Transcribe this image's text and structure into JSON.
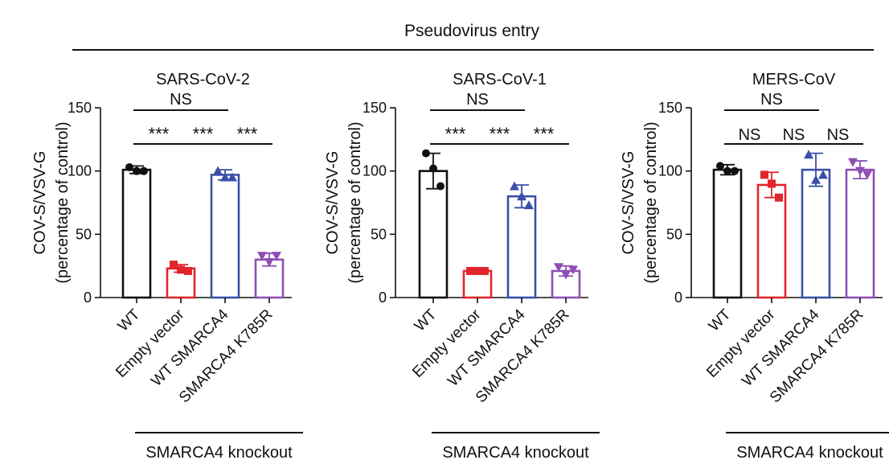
{
  "figure": {
    "header": "Pseudovirus entry",
    "group_label": "SMARCA4 knockout",
    "ylabel_line1": "COV-S/VSV-G",
    "ylabel_line2": "(percentage of control)"
  },
  "colors": {
    "WT": "#111111",
    "Empty vector": "#e0262b",
    "WT SMARCA4": "#3a4fa8",
    "SMARCA4 K785R": "#8e4fb5"
  },
  "chart_data": [
    {
      "type": "bar",
      "title": "SARS-CoV-2",
      "categories": [
        "WT",
        "Empty vector",
        "WT SMARCA4",
        "SMARCA4 K785R"
      ],
      "ylim": [
        0,
        150
      ],
      "yticks": [
        0,
        50,
        100,
        150
      ],
      "xlabel": "",
      "ylabel": "COV-S/VSV-G (percentage of control)",
      "values": [
        101,
        23,
        97,
        30
      ],
      "errors": [
        3,
        3,
        4,
        5
      ],
      "points": [
        [
          103,
          100,
          100
        ],
        [
          26,
          22,
          21
        ],
        [
          100,
          95,
          95
        ],
        [
          33,
          28,
          33
        ]
      ],
      "markers": [
        "circle",
        "square",
        "triangle-up",
        "triangle-down"
      ],
      "significance": [
        {
          "from": 0,
          "to": 2,
          "label": "NS"
        },
        {
          "from": 0,
          "to": 1,
          "label": "***"
        },
        {
          "from": 1,
          "to": 2,
          "label": "***"
        },
        {
          "from": 2,
          "to": 3,
          "label": "***"
        }
      ]
    },
    {
      "type": "bar",
      "title": "SARS-CoV-1",
      "categories": [
        "WT",
        "Empty vector",
        "WT SMARCA4",
        "SMARCA4 K785R"
      ],
      "ylim": [
        0,
        150
      ],
      "yticks": [
        0,
        50,
        100,
        150
      ],
      "xlabel": "",
      "ylabel": "COV-S/VSV-G (percentage of control)",
      "values": [
        100,
        21,
        80,
        21
      ],
      "errors": [
        14,
        1,
        9,
        4
      ],
      "points": [
        [
          114,
          102,
          88
        ],
        [
          21,
          21,
          21
        ],
        [
          88,
          80,
          73
        ],
        [
          24,
          18,
          22
        ]
      ],
      "markers": [
        "circle",
        "square",
        "triangle-up",
        "triangle-down"
      ],
      "significance": [
        {
          "from": 0,
          "to": 2,
          "label": "NS"
        },
        {
          "from": 0,
          "to": 1,
          "label": "***"
        },
        {
          "from": 1,
          "to": 2,
          "label": "***"
        },
        {
          "from": 2,
          "to": 3,
          "label": "***"
        }
      ]
    },
    {
      "type": "bar",
      "title": "MERS-CoV",
      "categories": [
        "WT",
        "Empty vector",
        "WT SMARCA4",
        "SMARCA4 K785R"
      ],
      "ylim": [
        0,
        150
      ],
      "yticks": [
        0,
        50,
        100,
        150
      ],
      "xlabel": "",
      "ylabel": "COV-S/VSV-G (percentage of control)",
      "values": [
        101,
        89,
        101,
        101
      ],
      "errors": [
        4,
        10,
        13,
        7
      ],
      "points": [
        [
          104,
          100,
          100
        ],
        [
          97,
          90,
          79
        ],
        [
          113,
          93,
          97
        ],
        [
          107,
          100,
          97
        ]
      ],
      "markers": [
        "circle",
        "square",
        "triangle-up",
        "triangle-down"
      ],
      "significance": [
        {
          "from": 0,
          "to": 2,
          "label": "NS"
        },
        {
          "from": 0,
          "to": 1,
          "label": "NS"
        },
        {
          "from": 1,
          "to": 2,
          "label": "NS"
        },
        {
          "from": 2,
          "to": 3,
          "label": "NS"
        }
      ]
    }
  ]
}
